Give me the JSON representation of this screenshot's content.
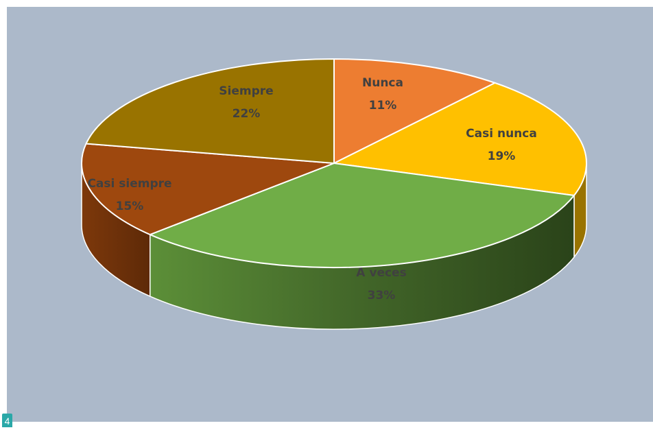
{
  "chart_data": {
    "type": "pie",
    "title": "",
    "style": "3d",
    "slices": [
      {
        "label": "Nunca",
        "percent_label": "11%",
        "value": 11,
        "color": "#ed7d31"
      },
      {
        "label": "Casi nunca",
        "percent_label": "19%",
        "value": 19,
        "color": "#ffc000"
      },
      {
        "label": "A veces",
        "percent_label": "33%",
        "value": 33,
        "color": "#70ad47"
      },
      {
        "label": "Casi siempre",
        "percent_label": "15%",
        "value": 15,
        "color": "#9e480e"
      },
      {
        "label": "Siempre",
        "percent_label": "22%",
        "value": 22,
        "color": "#997300"
      }
    ]
  },
  "page_badge": "4"
}
